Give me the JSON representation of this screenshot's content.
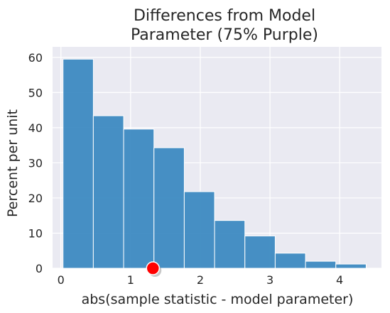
{
  "chart_data": {
    "type": "bar",
    "title_lines": [
      "Differences from Model",
      "Parameter (75% Purple)"
    ],
    "xlabel": "abs(sample statistic - model parameter)",
    "ylabel": "Percent per unit",
    "xlim": [
      -0.12,
      4.6
    ],
    "ylim": [
      0,
      63
    ],
    "x_ticks": [
      0,
      1,
      2,
      3,
      4
    ],
    "y_ticks": [
      0,
      10,
      20,
      30,
      40,
      50,
      60
    ],
    "bin_edges": [
      0.03,
      0.465,
      0.9,
      1.335,
      1.77,
      2.205,
      2.64,
      3.075,
      3.51,
      3.945,
      4.38
    ],
    "values": [
      59.5,
      43.4,
      39.6,
      34.3,
      21.8,
      13.6,
      9.2,
      4.3,
      2.0,
      1.2
    ],
    "marker_point": {
      "x": 1.32,
      "y": 0
    },
    "grid": true,
    "colors": {
      "background": "#eaeaf2",
      "grid": "#ffffff",
      "bar_fill": "#3787c0",
      "bar_edge": "#ffffff",
      "marker": "#ff0000",
      "text": "#262626"
    }
  }
}
